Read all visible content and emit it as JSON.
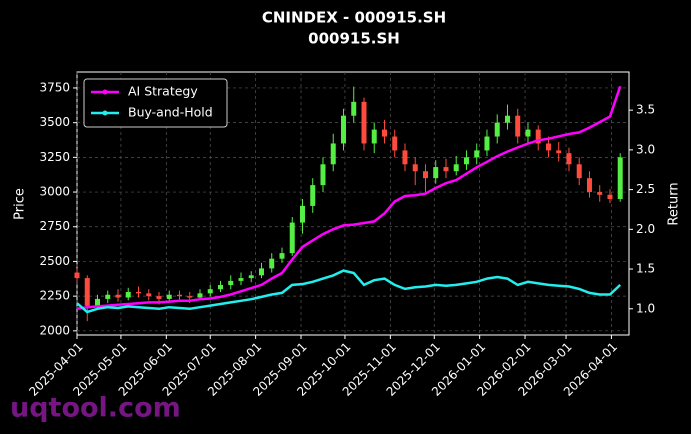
{
  "chart_data": {
    "type": "candlestick",
    "title": "CNINDEX - 000915.SH",
    "subtitle": "000915.SH",
    "ylabel": "Price",
    "y2label": "Return",
    "watermark": "uqtool.com",
    "legend": "upper left",
    "grid": true,
    "up_color": "#55ee44",
    "down_color": "#ff4b3e",
    "xlim": [
      "2025-04-01",
      "2026-04-13"
    ],
    "xticks": [
      "2025-04-01",
      "2025-05-01",
      "2025-06-01",
      "2025-07-01",
      "2025-08-01",
      "2025-09-01",
      "2025-10-01",
      "2025-11-01",
      "2025-12-01",
      "2026-01-01",
      "2026-02-01",
      "2026-03-01",
      "2026-04-01"
    ],
    "ylim": [
      1970,
      3865
    ],
    "yticks": [
      2000,
      2250,
      2500,
      2750,
      3000,
      3250,
      3500,
      3750
    ],
    "y2lim": [
      0.67,
      3.98
    ],
    "y2ticks": [
      {
        "value": 1,
        "label": "1.0"
      },
      {
        "value": 1.5,
        "label": "1.5"
      },
      {
        "value": 2,
        "label": "2.0"
      },
      {
        "value": 2.5,
        "label": "2.5"
      },
      {
        "value": 3,
        "label": "3.0"
      },
      {
        "value": 3.5,
        "label": "3.5"
      }
    ],
    "x": [
      "2025-04-01",
      "2025-04-08",
      "2025-04-15",
      "2025-04-22",
      "2025-04-29",
      "2025-05-06",
      "2025-05-13",
      "2025-05-20",
      "2025-05-27",
      "2025-06-03",
      "2025-06-10",
      "2025-06-17",
      "2025-06-24",
      "2025-07-01",
      "2025-07-08",
      "2025-07-15",
      "2025-07-22",
      "2025-07-29",
      "2025-08-05",
      "2025-08-12",
      "2025-08-19",
      "2025-08-26",
      "2025-09-02",
      "2025-09-09",
      "2025-09-16",
      "2025-09-23",
      "2025-09-30",
      "2025-10-07",
      "2025-10-14",
      "2025-10-21",
      "2025-10-28",
      "2025-11-04",
      "2025-11-11",
      "2025-11-18",
      "2025-11-25",
      "2025-12-02",
      "2025-12-09",
      "2025-12-16",
      "2025-12-23",
      "2025-12-30",
      "2026-01-06",
      "2026-01-13",
      "2026-01-20",
      "2026-01-27",
      "2026-02-03",
      "2026-02-10",
      "2026-02-17",
      "2026-02-24",
      "2026-03-03",
      "2026-03-10",
      "2026-03-17",
      "2026-03-24",
      "2026-03-31",
      "2026-04-07"
    ],
    "open": [
      2420,
      2380,
      2180,
      2230,
      2260,
      2240,
      2280,
      2270,
      2250,
      2230,
      2260,
      2250,
      2240,
      2270,
      2300,
      2330,
      2360,
      2380,
      2400,
      2450,
      2520,
      2560,
      2780,
      2900,
      3050,
      3200,
      3350,
      3550,
      3650,
      3350,
      3450,
      3400,
      3300,
      3200,
      3150,
      3100,
      3180,
      3150,
      3200,
      3250,
      3300,
      3400,
      3500,
      3550,
      3400,
      3450,
      3350,
      3300,
      3280,
      3200,
      3100,
      3000,
      2980,
      2950
    ],
    "high": [
      2450,
      2400,
      2260,
      2290,
      2300,
      2310,
      2320,
      2300,
      2280,
      2290,
      2290,
      2280,
      2300,
      2330,
      2360,
      2400,
      2420,
      2430,
      2490,
      2560,
      2600,
      2820,
      2950,
      3100,
      3250,
      3420,
      3600,
      3760,
      3680,
      3500,
      3520,
      3450,
      3350,
      3250,
      3200,
      3230,
      3240,
      3260,
      3300,
      3350,
      3450,
      3560,
      3630,
      3600,
      3500,
      3480,
      3400,
      3360,
      3320,
      3250,
      3150,
      3050,
      3020,
      3280
    ],
    "low": [
      2350,
      2070,
      2150,
      2200,
      2210,
      2220,
      2240,
      2220,
      2190,
      2200,
      2220,
      2200,
      2220,
      2250,
      2280,
      2300,
      2330,
      2350,
      2380,
      2420,
      2490,
      2540,
      2700,
      2850,
      3000,
      3150,
      3300,
      3500,
      3300,
      3280,
      3350,
      3250,
      3150,
      3050,
      3000,
      3060,
      3100,
      3120,
      3160,
      3200,
      3260,
      3350,
      3450,
      3350,
      3350,
      3300,
      3250,
      3220,
      3150,
      3050,
      2960,
      2930,
      2920,
      2930
    ],
    "close": [
      2380,
      2180,
      2230,
      2260,
      2240,
      2280,
      2270,
      2250,
      2230,
      2260,
      2250,
      2240,
      2270,
      2300,
      2330,
      2360,
      2380,
      2400,
      2450,
      2520,
      2560,
      2780,
      2900,
      3050,
      3200,
      3350,
      3550,
      3650,
      3350,
      3450,
      3400,
      3300,
      3200,
      3150,
      3100,
      3180,
      3150,
      3200,
      3250,
      3300,
      3400,
      3500,
      3550,
      3400,
      3450,
      3350,
      3300,
      3280,
      3200,
      3100,
      3000,
      2980,
      2950,
      3250
    ],
    "series": [
      {
        "name": "AI Strategy",
        "color": "#ff00ff",
        "axis": "y2",
        "values": [
          1.0,
          1.02,
          1.03,
          1.04,
          1.05,
          1.06,
          1.07,
          1.08,
          1.08,
          1.09,
          1.1,
          1.1,
          1.12,
          1.13,
          1.15,
          1.18,
          1.22,
          1.26,
          1.3,
          1.38,
          1.45,
          1.62,
          1.78,
          1.86,
          1.94,
          2.0,
          2.05,
          2.06,
          2.08,
          2.1,
          2.2,
          2.35,
          2.42,
          2.43,
          2.45,
          2.52,
          2.58,
          2.62,
          2.7,
          2.78,
          2.85,
          2.92,
          2.98,
          3.03,
          3.08,
          3.12,
          3.14,
          3.17,
          3.2,
          3.22,
          3.28,
          3.35,
          3.42,
          3.8
        ]
      },
      {
        "name": "Buy-and-Hold",
        "color": "#22eeee",
        "axis": "y2",
        "values": [
          1.07,
          0.96,
          1.0,
          1.02,
          1.01,
          1.03,
          1.02,
          1.01,
          1.0,
          1.02,
          1.01,
          1.0,
          1.02,
          1.04,
          1.06,
          1.08,
          1.1,
          1.12,
          1.15,
          1.18,
          1.2,
          1.3,
          1.31,
          1.34,
          1.38,
          1.42,
          1.48,
          1.45,
          1.3,
          1.36,
          1.38,
          1.3,
          1.25,
          1.27,
          1.28,
          1.3,
          1.29,
          1.3,
          1.32,
          1.34,
          1.38,
          1.4,
          1.38,
          1.3,
          1.34,
          1.32,
          1.3,
          1.29,
          1.28,
          1.25,
          1.2,
          1.18,
          1.18,
          1.3
        ]
      }
    ]
  }
}
